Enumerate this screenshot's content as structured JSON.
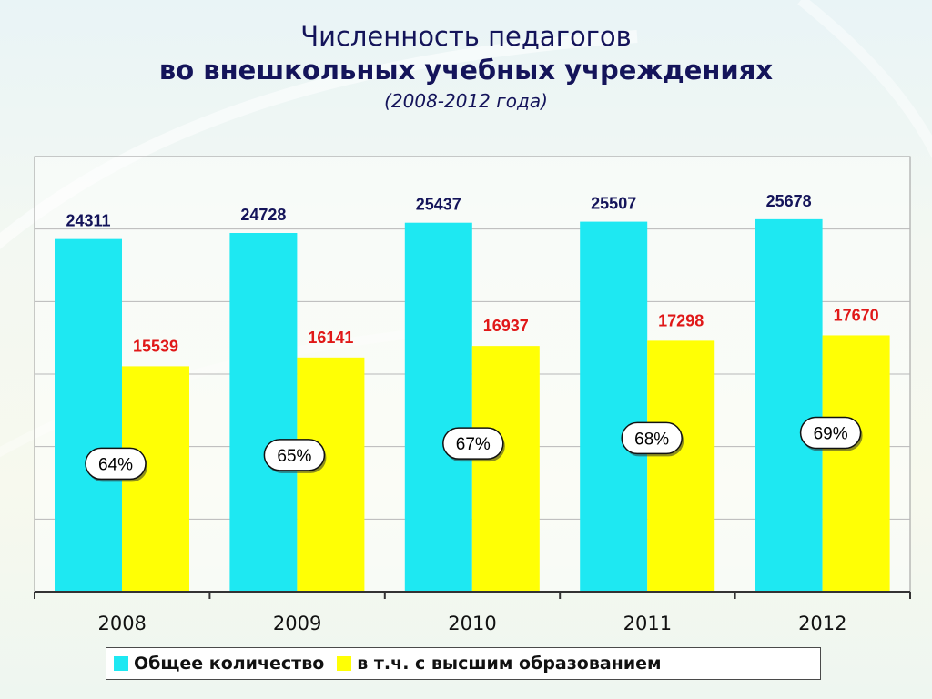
{
  "title": {
    "line1": "Численность педагогов",
    "line2": "во внешкольных учебных учреждениях",
    "subtitle": "(2008-2012 года)"
  },
  "colors": {
    "total": "#1ee8f2",
    "higher": "#ffff05",
    "total_label": "#14145a",
    "higher_label": "#e01818"
  },
  "chart_data": {
    "type": "bar",
    "title": "Численность педагогов во внешкольных учебных учреждениях (2008-2012 года)",
    "categories": [
      "2008",
      "2009",
      "2010",
      "2011",
      "2012"
    ],
    "series": [
      {
        "name": "Общее количество",
        "values": [
          24311,
          24728,
          25437,
          25507,
          25678
        ]
      },
      {
        "name": "в т.ч. с высшим образованием",
        "values": [
          15539,
          16141,
          16937,
          17298,
          17670
        ]
      }
    ],
    "percent_labels": [
      "64%",
      "65%",
      "67%",
      "68%",
      "69%"
    ],
    "ylim": [
      0,
      30000
    ],
    "grid": true,
    "legend": "bottom"
  }
}
